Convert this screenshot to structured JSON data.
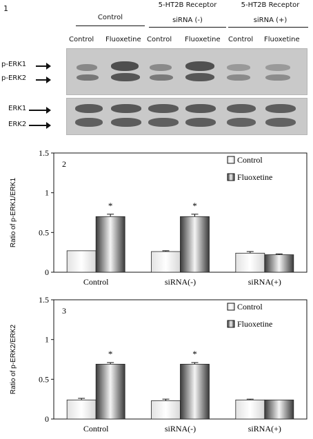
{
  "panel1": {
    "number": "1",
    "group_headers": [
      {
        "line1": "Control",
        "line2": ""
      },
      {
        "line1": "5-HT2B Receptor",
        "line2": "siRNA (-)"
      },
      {
        "line1": "5-HT2B Receptor",
        "line2": "siRNA (+)"
      }
    ],
    "lane_labels": [
      "Control",
      "Fluoxetine",
      "Control",
      "Fluoxetine",
      "Control",
      "Fluoxetine"
    ],
    "row_labels": [
      "p-ERK1",
      "p-ERK2",
      "ERK1",
      "ERK2"
    ]
  },
  "chart_data": [
    {
      "type": "bar",
      "panel_number": "2",
      "categories": [
        "Control",
        "siRNA(-)",
        "siRNA(+)"
      ],
      "series": [
        {
          "name": "Control",
          "values": [
            0.27,
            0.26,
            0.24
          ],
          "errors": [
            0.0,
            0.01,
            0.02
          ]
        },
        {
          "name": "Fluoxetine",
          "values": [
            0.7,
            0.7,
            0.22
          ],
          "errors": [
            0.03,
            0.03,
            0.01
          ]
        }
      ],
      "significance": [
        "*",
        "*",
        ""
      ],
      "ylabel": "Ratio of p-ERK1/ERK1",
      "ylim": [
        0,
        1.5
      ],
      "yticks": [
        "0",
        "0.5",
        "1",
        "1.5"
      ],
      "legend_position": "top-right"
    },
    {
      "type": "bar",
      "panel_number": "3",
      "categories": [
        "Control",
        "siRNA(-)",
        "siRNA(+)"
      ],
      "series": [
        {
          "name": "Control",
          "values": [
            0.24,
            0.23,
            0.24
          ],
          "errors": [
            0.02,
            0.02,
            0.01
          ]
        },
        {
          "name": "Fluoxetine",
          "values": [
            0.69,
            0.69,
            0.24
          ],
          "errors": [
            0.02,
            0.02,
            0.0
          ]
        }
      ],
      "significance": [
        "*",
        "*",
        ""
      ],
      "ylabel": "Ratio of p-ERK2/ERK2",
      "ylim": [
        0,
        1.5
      ],
      "yticks": [
        "0",
        "0.5",
        "1",
        "1.5"
      ],
      "legend_position": "top-right"
    }
  ]
}
